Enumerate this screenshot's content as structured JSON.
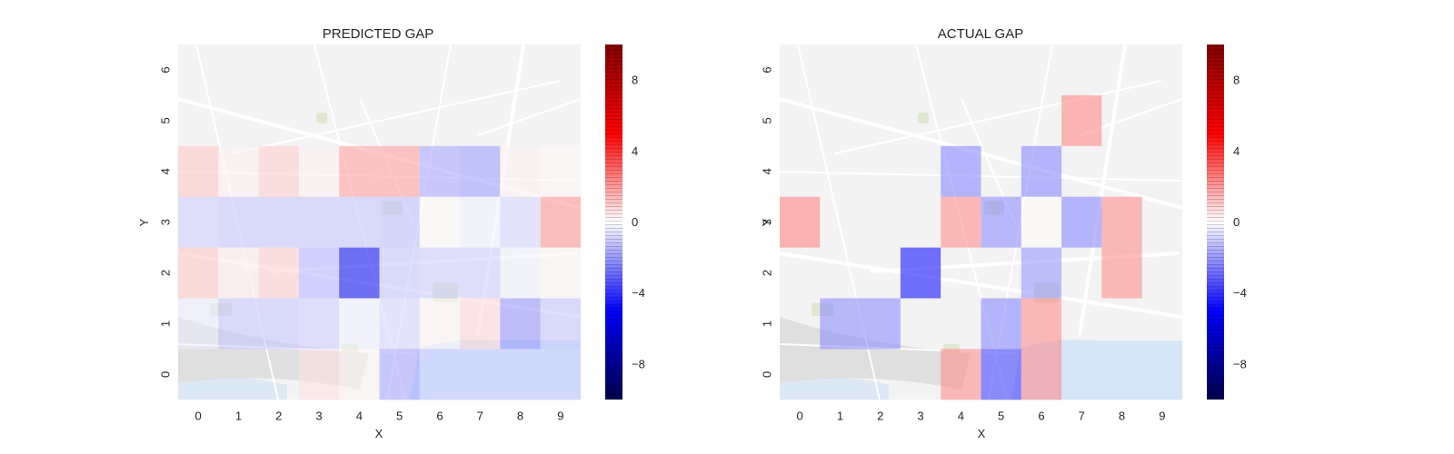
{
  "chart_data": [
    {
      "type": "heatmap",
      "title": "PREDICTED GAP",
      "xlabel": "X",
      "ylabel": "Y",
      "x_categories": [
        "0",
        "1",
        "2",
        "3",
        "4",
        "5",
        "6",
        "7",
        "8",
        "9"
      ],
      "y_categories": [
        "0",
        "1",
        "2",
        "3",
        "4",
        "5",
        "6"
      ],
      "colorbar": {
        "colormap": "seismic",
        "range": [
          -10,
          10
        ],
        "ticks": [
          "8",
          "4",
          "0",
          "−4",
          "−8"
        ],
        "tick_values": [
          8,
          4,
          0,
          -4,
          -8
        ]
      },
      "background": "map",
      "cells": [
        {
          "x": 0,
          "y": 4,
          "v": 1.2
        },
        {
          "x": 1,
          "y": 4,
          "v": 0.3
        },
        {
          "x": 2,
          "y": 4,
          "v": 1.0
        },
        {
          "x": 3,
          "y": 4,
          "v": 0.3
        },
        {
          "x": 4,
          "y": 4,
          "v": 2.0
        },
        {
          "x": 5,
          "y": 4,
          "v": 2.0
        },
        {
          "x": 6,
          "y": 4,
          "v": -1.8
        },
        {
          "x": 7,
          "y": 4,
          "v": -2.0
        },
        {
          "x": 8,
          "y": 4,
          "v": 0.3
        },
        {
          "x": 9,
          "y": 4,
          "v": 0.2
        },
        {
          "x": 0,
          "y": 3,
          "v": -1.0
        },
        {
          "x": 1,
          "y": 3,
          "v": -1.2
        },
        {
          "x": 2,
          "y": 3,
          "v": -1.2
        },
        {
          "x": 3,
          "y": 3,
          "v": -1.2
        },
        {
          "x": 4,
          "y": 3,
          "v": -1.2
        },
        {
          "x": 5,
          "y": 3,
          "v": -1.3
        },
        {
          "x": 6,
          "y": 3,
          "v": 0.1
        },
        {
          "x": 7,
          "y": 3,
          "v": -0.3
        },
        {
          "x": 8,
          "y": 3,
          "v": -0.8
        },
        {
          "x": 9,
          "y": 3,
          "v": 2.2
        },
        {
          "x": 0,
          "y": 2,
          "v": 1.2
        },
        {
          "x": 1,
          "y": 2,
          "v": 0.4
        },
        {
          "x": 2,
          "y": 2,
          "v": 1.0
        },
        {
          "x": 3,
          "y": 2,
          "v": -1.5
        },
        {
          "x": 4,
          "y": 2,
          "v": -5.5
        },
        {
          "x": 5,
          "y": 2,
          "v": -1.2
        },
        {
          "x": 6,
          "y": 2,
          "v": -1.0
        },
        {
          "x": 7,
          "y": 2,
          "v": -1.0
        },
        {
          "x": 8,
          "y": 2,
          "v": -0.3
        },
        {
          "x": 9,
          "y": 2,
          "v": 0.2
        },
        {
          "x": 0,
          "y": 1,
          "v": -0.4
        },
        {
          "x": 1,
          "y": 1,
          "v": -1.2
        },
        {
          "x": 2,
          "y": 1,
          "v": -1.2
        },
        {
          "x": 3,
          "y": 1,
          "v": -1.0
        },
        {
          "x": 4,
          "y": 1,
          "v": -0.3
        },
        {
          "x": 5,
          "y": 1,
          "v": -0.8
        },
        {
          "x": 6,
          "y": 1,
          "v": 0.2
        },
        {
          "x": 7,
          "y": 1,
          "v": 0.8
        },
        {
          "x": 8,
          "y": 1,
          "v": -2.2
        },
        {
          "x": 9,
          "y": 1,
          "v": -1.2
        },
        {
          "x": 3,
          "y": 0,
          "v": 0.6
        },
        {
          "x": 4,
          "y": 0,
          "v": 0.2
        },
        {
          "x": 5,
          "y": 0,
          "v": -1.8
        },
        {
          "x": 6,
          "y": 0,
          "v": -1.0
        },
        {
          "x": 7,
          "y": 0,
          "v": -1.0
        },
        {
          "x": 8,
          "y": 0,
          "v": -1.0
        },
        {
          "x": 9,
          "y": 0,
          "v": -1.0
        }
      ]
    },
    {
      "type": "heatmap",
      "title": "ACTUAL GAP",
      "xlabel": "X",
      "ylabel": "Y",
      "x_categories": [
        "0",
        "1",
        "2",
        "3",
        "4",
        "5",
        "6",
        "7",
        "8",
        "9"
      ],
      "y_categories": [
        "0",
        "1",
        "2",
        "3",
        "4",
        "5",
        "6"
      ],
      "colorbar": {
        "colormap": "seismic",
        "range": [
          -10,
          10
        ],
        "ticks": [
          "8",
          "4",
          "0",
          "−4",
          "−8"
        ],
        "tick_values": [
          8,
          4,
          0,
          -4,
          -8
        ]
      },
      "background": "map",
      "cells": [
        {
          "x": 7,
          "y": 5,
          "v": 2.5
        },
        {
          "x": 4,
          "y": 4,
          "v": -2.5
        },
        {
          "x": 6,
          "y": 4,
          "v": -2.5
        },
        {
          "x": 0,
          "y": 3,
          "v": 2.6
        },
        {
          "x": 4,
          "y": 3,
          "v": 2.4
        },
        {
          "x": 5,
          "y": 3,
          "v": -2.4
        },
        {
          "x": 6,
          "y": 3,
          "v": 0.1
        },
        {
          "x": 7,
          "y": 3,
          "v": -2.5
        },
        {
          "x": 8,
          "y": 3,
          "v": 2.4
        },
        {
          "x": 3,
          "y": 2,
          "v": -5.0
        },
        {
          "x": 6,
          "y": 2,
          "v": -2.2
        },
        {
          "x": 8,
          "y": 2,
          "v": 2.4
        },
        {
          "x": 1,
          "y": 1,
          "v": -2.4
        },
        {
          "x": 2,
          "y": 1,
          "v": -2.4
        },
        {
          "x": 5,
          "y": 1,
          "v": -2.5
        },
        {
          "x": 6,
          "y": 1,
          "v": 2.4
        },
        {
          "x": 4,
          "y": 0,
          "v": 2.4
        },
        {
          "x": 5,
          "y": 0,
          "v": -4.0
        },
        {
          "x": 6,
          "y": 0,
          "v": 2.4
        }
      ]
    }
  ]
}
